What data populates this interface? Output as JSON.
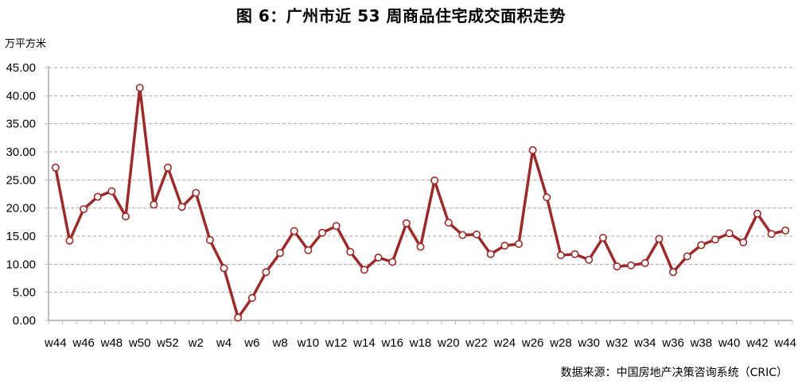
{
  "header": {
    "title": "图 6：广州市近 53 周商品住宅成交面积走势",
    "unit_label": "万平方米"
  },
  "footer": {
    "source": "数据来源：中国房地产决策咨询系统（CRIC）"
  },
  "colors": {
    "line": "#9B2A2A",
    "marker_fill": "#ffffff",
    "grid": "#A6A6A6",
    "axis": "#BFBFBF"
  },
  "chart_data": {
    "type": "line",
    "title": "图 6：广州市近 53 周商品住宅成交面积走势",
    "xlabel": "",
    "ylabel": "万平方米",
    "ylim": [
      0,
      45
    ],
    "yticks": [
      "0.00",
      "5.00",
      "10.00",
      "15.00",
      "20.00",
      "25.00",
      "30.00",
      "35.00",
      "40.00",
      "45.00"
    ],
    "grid": "horizontal dashed",
    "legend": "none",
    "categories": [
      "w44",
      "w45",
      "w46",
      "w47",
      "w48",
      "w49",
      "w50",
      "w51",
      "w52",
      "w1",
      "w2",
      "w3",
      "w4",
      "w5",
      "w6",
      "w7",
      "w8",
      "w9",
      "w10",
      "w11",
      "w12",
      "w13",
      "w14",
      "w15",
      "w16",
      "w17",
      "w18",
      "w19",
      "w20",
      "w21",
      "w22",
      "w23",
      "w24",
      "w25",
      "w26",
      "w27",
      "w28",
      "w29",
      "w30",
      "w31",
      "w32",
      "w33",
      "w34",
      "w35",
      "w36",
      "w37",
      "w38",
      "w39",
      "w40",
      "w41",
      "w42",
      "w43",
      "w44"
    ],
    "x_tick_labels": [
      "w44",
      "w46",
      "w48",
      "w50",
      "w52",
      "w2",
      "w4",
      "w6",
      "w8",
      "w10",
      "w12",
      "w14",
      "w16",
      "w18",
      "w20",
      "w22",
      "w24",
      "w26",
      "w28",
      "w30",
      "w32",
      "w34",
      "w36",
      "w38",
      "w40",
      "w42",
      "w44"
    ],
    "series": [
      {
        "name": "商品住宅成交面积",
        "values": [
          27.2,
          14.2,
          19.8,
          22.0,
          23.0,
          18.5,
          41.4,
          20.6,
          27.2,
          20.2,
          22.7,
          14.3,
          9.3,
          0.5,
          4.0,
          8.6,
          12.0,
          15.9,
          12.5,
          15.6,
          16.8,
          12.2,
          9.0,
          11.2,
          10.4,
          17.3,
          13.1,
          24.9,
          17.4,
          15.2,
          15.3,
          11.8,
          13.3,
          13.6,
          30.3,
          21.9,
          11.6,
          11.8,
          10.8,
          14.7,
          9.6,
          9.8,
          10.2,
          14.5,
          8.6,
          11.4,
          13.4,
          14.4,
          15.5,
          13.9,
          19.0,
          15.4,
          16.0
        ]
      }
    ]
  }
}
